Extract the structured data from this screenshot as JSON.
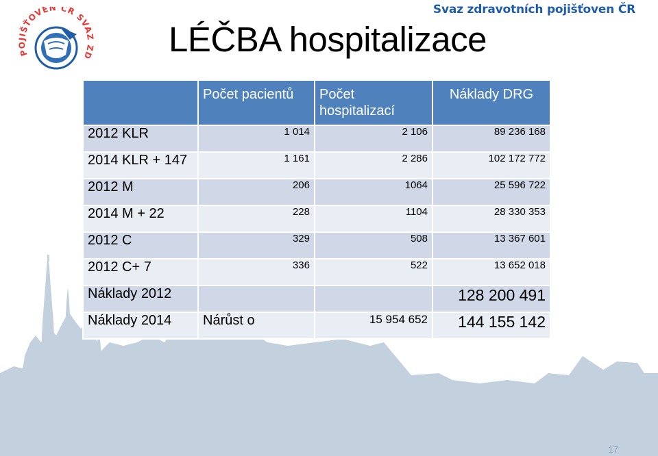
{
  "brand": {
    "name": "Svaz zdravotních pojišťoven ČR",
    "color": "#1f5da8"
  },
  "logo": {
    "icon": "svaz-logo-icon",
    "arc_text": "POJIŠŤOVEN ČR SVAZ ZDRAVOTNÍCH"
  },
  "page": {
    "title": "LÉČBA hospitalizace",
    "number": "17"
  },
  "table": {
    "headers": [
      "",
      "Počet pacientů",
      "Počet hospitalizací",
      "Náklady DRG"
    ],
    "rows": [
      {
        "label": "2012 KLR",
        "pacientu": "1 014",
        "hospitalizaci": "2 106",
        "naklady": "89 236 168"
      },
      {
        "label": "2014 KLR + 147",
        "pacientu": "1 161",
        "hospitalizaci": "2 286",
        "naklady": "102 172 772"
      },
      {
        "label": "2012 M",
        "pacientu": "206",
        "hospitalizaci": "1064",
        "naklady": "25 596 722"
      },
      {
        "label": "2014 M + 22",
        "pacientu": "228",
        "hospitalizaci": "1104",
        "naklady": "28 330 353"
      },
      {
        "label": "2012 C",
        "pacientu": "329",
        "hospitalizaci": "508",
        "naklady": "13 367 601"
      },
      {
        "label": "2012 C+ 7",
        "pacientu": "336",
        "hospitalizaci": "522",
        "naklady": "13 652 018"
      }
    ],
    "naklady_2012": {
      "label": "Náklady 2012",
      "value": "128 200 491"
    },
    "naklady_2014": {
      "label": "Náklady 2014",
      "narust_label": "Nárůst o",
      "narust_value": "15 954 652",
      "value": "144 155 142"
    }
  },
  "colors": {
    "header": "#4f81bd",
    "row_odd": "#d0d8e8",
    "row_even": "#e9edf4",
    "skyline": "#c3d0de",
    "logo_red": "#e53935",
    "logo_blue": "#1f5da8"
  }
}
